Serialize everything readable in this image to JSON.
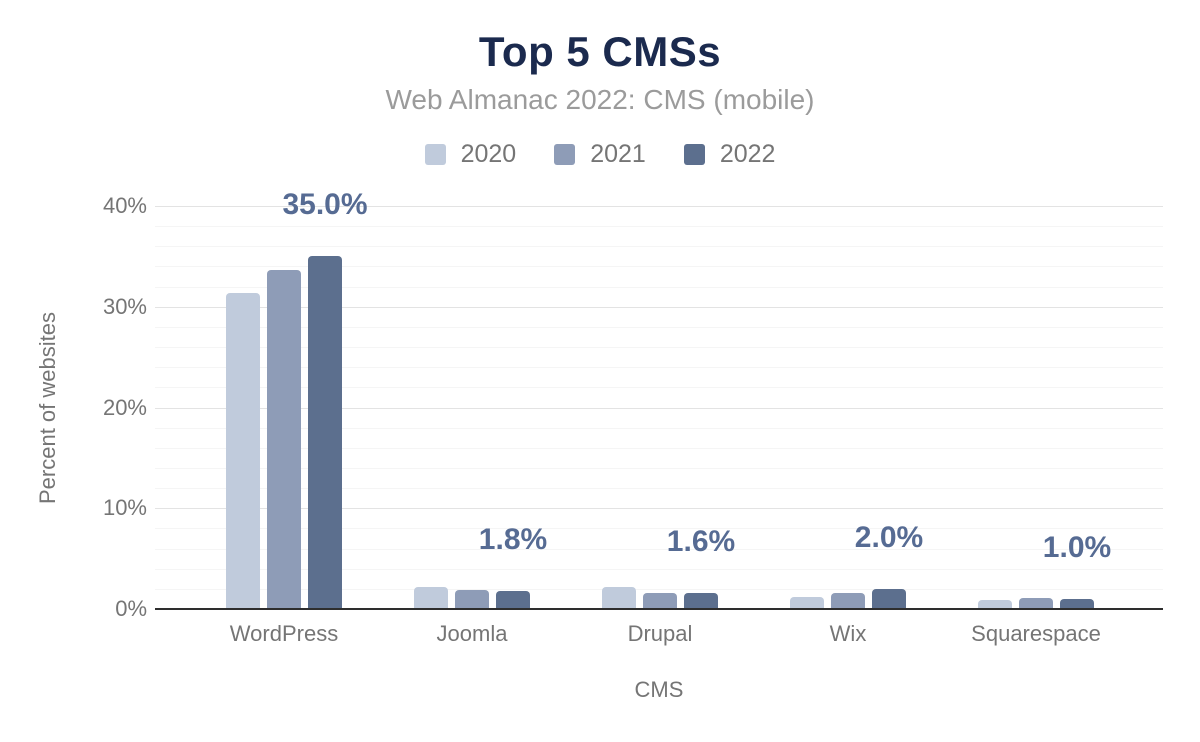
{
  "chart_data": {
    "type": "bar",
    "title": "Top 5 CMSs",
    "subtitle": "Web Almanac 2022: CMS (mobile)",
    "categories": [
      "WordPress",
      "Joomla",
      "Drupal",
      "Wix",
      "Squarespace"
    ],
    "series": [
      {
        "name": "2020",
        "color": "#c0cbdc",
        "values": [
          31.4,
          2.2,
          2.2,
          1.2,
          0.9
        ]
      },
      {
        "name": "2021",
        "color": "#8e9cb7",
        "values": [
          33.6,
          1.9,
          1.6,
          1.6,
          1.1
        ]
      },
      {
        "name": "2022",
        "color": "#5c6f8e",
        "values": [
          35.0,
          1.8,
          1.6,
          2.0,
          1.0
        ]
      }
    ],
    "data_labels": [
      "35.0%",
      "1.8%",
      "1.6%",
      "2.0%",
      "1.0%"
    ],
    "xlabel": "CMS",
    "ylabel": "Percent of websites",
    "ylim": [
      0,
      40
    ],
    "yticks": [
      "0%",
      "10%",
      "20%",
      "30%",
      "40%"
    ],
    "ytick_values": [
      0,
      10,
      20,
      30,
      40
    ],
    "minor_grid_step": 2,
    "grid": true,
    "legend_position": "top"
  },
  "colors": {
    "title": "#1b2a4e",
    "subtitle": "#9b9b9b",
    "axis_text": "#757575",
    "data_label": "#566b93",
    "axis_line": "#2e2e2e",
    "grid_major": "#e3e3e3",
    "grid_minor": "#f5f5f5",
    "background": "#ffffff"
  }
}
